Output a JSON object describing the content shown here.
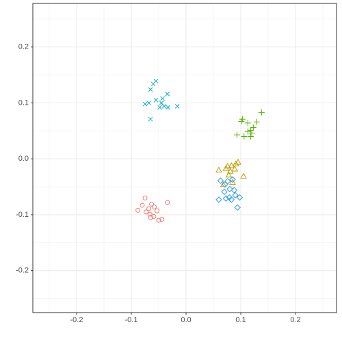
{
  "chart_data": {
    "type": "scatter",
    "xlim": [
      -0.28,
      0.275
    ],
    "ylim": [
      -0.275,
      0.278
    ],
    "xticks": [
      -0.2,
      -0.1,
      {
        "value": 0,
        "label": "0.0"
      },
      0.1,
      0.2
    ],
    "yticks": [
      -0.2,
      -0.1,
      {
        "value": 0,
        "label": "0.0"
      },
      0.1,
      0.2
    ],
    "grid": true,
    "series": [
      {
        "color": "#F8766D",
        "shape": "circle",
        "x": [
          -0.075,
          -0.08,
          -0.063,
          -0.058,
          -0.068,
          -0.073,
          -0.066,
          -0.053,
          -0.044,
          -0.05,
          -0.034,
          -0.088,
          -0.059,
          -0.065
        ],
        "y": [
          -0.07,
          -0.083,
          -0.081,
          -0.086,
          -0.089,
          -0.095,
          -0.099,
          -0.093,
          -0.108,
          -0.11,
          -0.078,
          -0.092,
          -0.103,
          -0.105
        ]
      },
      {
        "color": "#C49A00",
        "shape": "triangle",
        "x": [
          0.06,
          0.073,
          0.091,
          0.095,
          0.083,
          0.076,
          0.089,
          0.081,
          0.105,
          0.078,
          0.068,
          0.085
        ],
        "y": [
          -0.02,
          -0.017,
          -0.009,
          -0.006,
          -0.012,
          -0.013,
          -0.018,
          -0.022,
          -0.031,
          -0.029,
          -0.046,
          -0.042
        ]
      },
      {
        "color": "#53B400",
        "shape": "plus",
        "x": [
          0.138,
          0.101,
          0.113,
          0.129,
          0.123,
          0.118,
          0.113,
          0.093,
          0.106,
          0.118,
          0.12,
          0.103
        ],
        "y": [
          0.083,
          0.067,
          0.064,
          0.066,
          0.056,
          0.051,
          0.049,
          0.043,
          0.04,
          0.04,
          0.046,
          0.071
        ]
      },
      {
        "color": "#12AFC0",
        "shape": "cross",
        "x": [
          -0.055,
          -0.06,
          -0.065,
          -0.034,
          -0.043,
          -0.055,
          -0.068,
          -0.075,
          -0.045,
          -0.04,
          -0.033,
          -0.016,
          -0.048,
          -0.065
        ],
        "y": [
          0.139,
          0.134,
          0.124,
          0.116,
          0.108,
          0.105,
          0.1,
          0.098,
          0.1,
          0.094,
          0.092,
          0.094,
          0.092,
          0.071
        ]
      },
      {
        "color": "#2E9BF0",
        "shape": "diamond",
        "x": [
          0.063,
          0.076,
          0.085,
          0.071,
          0.08,
          0.07,
          0.088,
          0.09,
          0.098,
          0.079,
          0.06,
          0.073,
          0.094,
          0.083
        ],
        "y": [
          -0.039,
          -0.04,
          -0.037,
          -0.046,
          -0.054,
          -0.059,
          -0.056,
          -0.065,
          -0.069,
          -0.069,
          -0.073,
          -0.071,
          -0.087,
          -0.073
        ]
      }
    ]
  }
}
